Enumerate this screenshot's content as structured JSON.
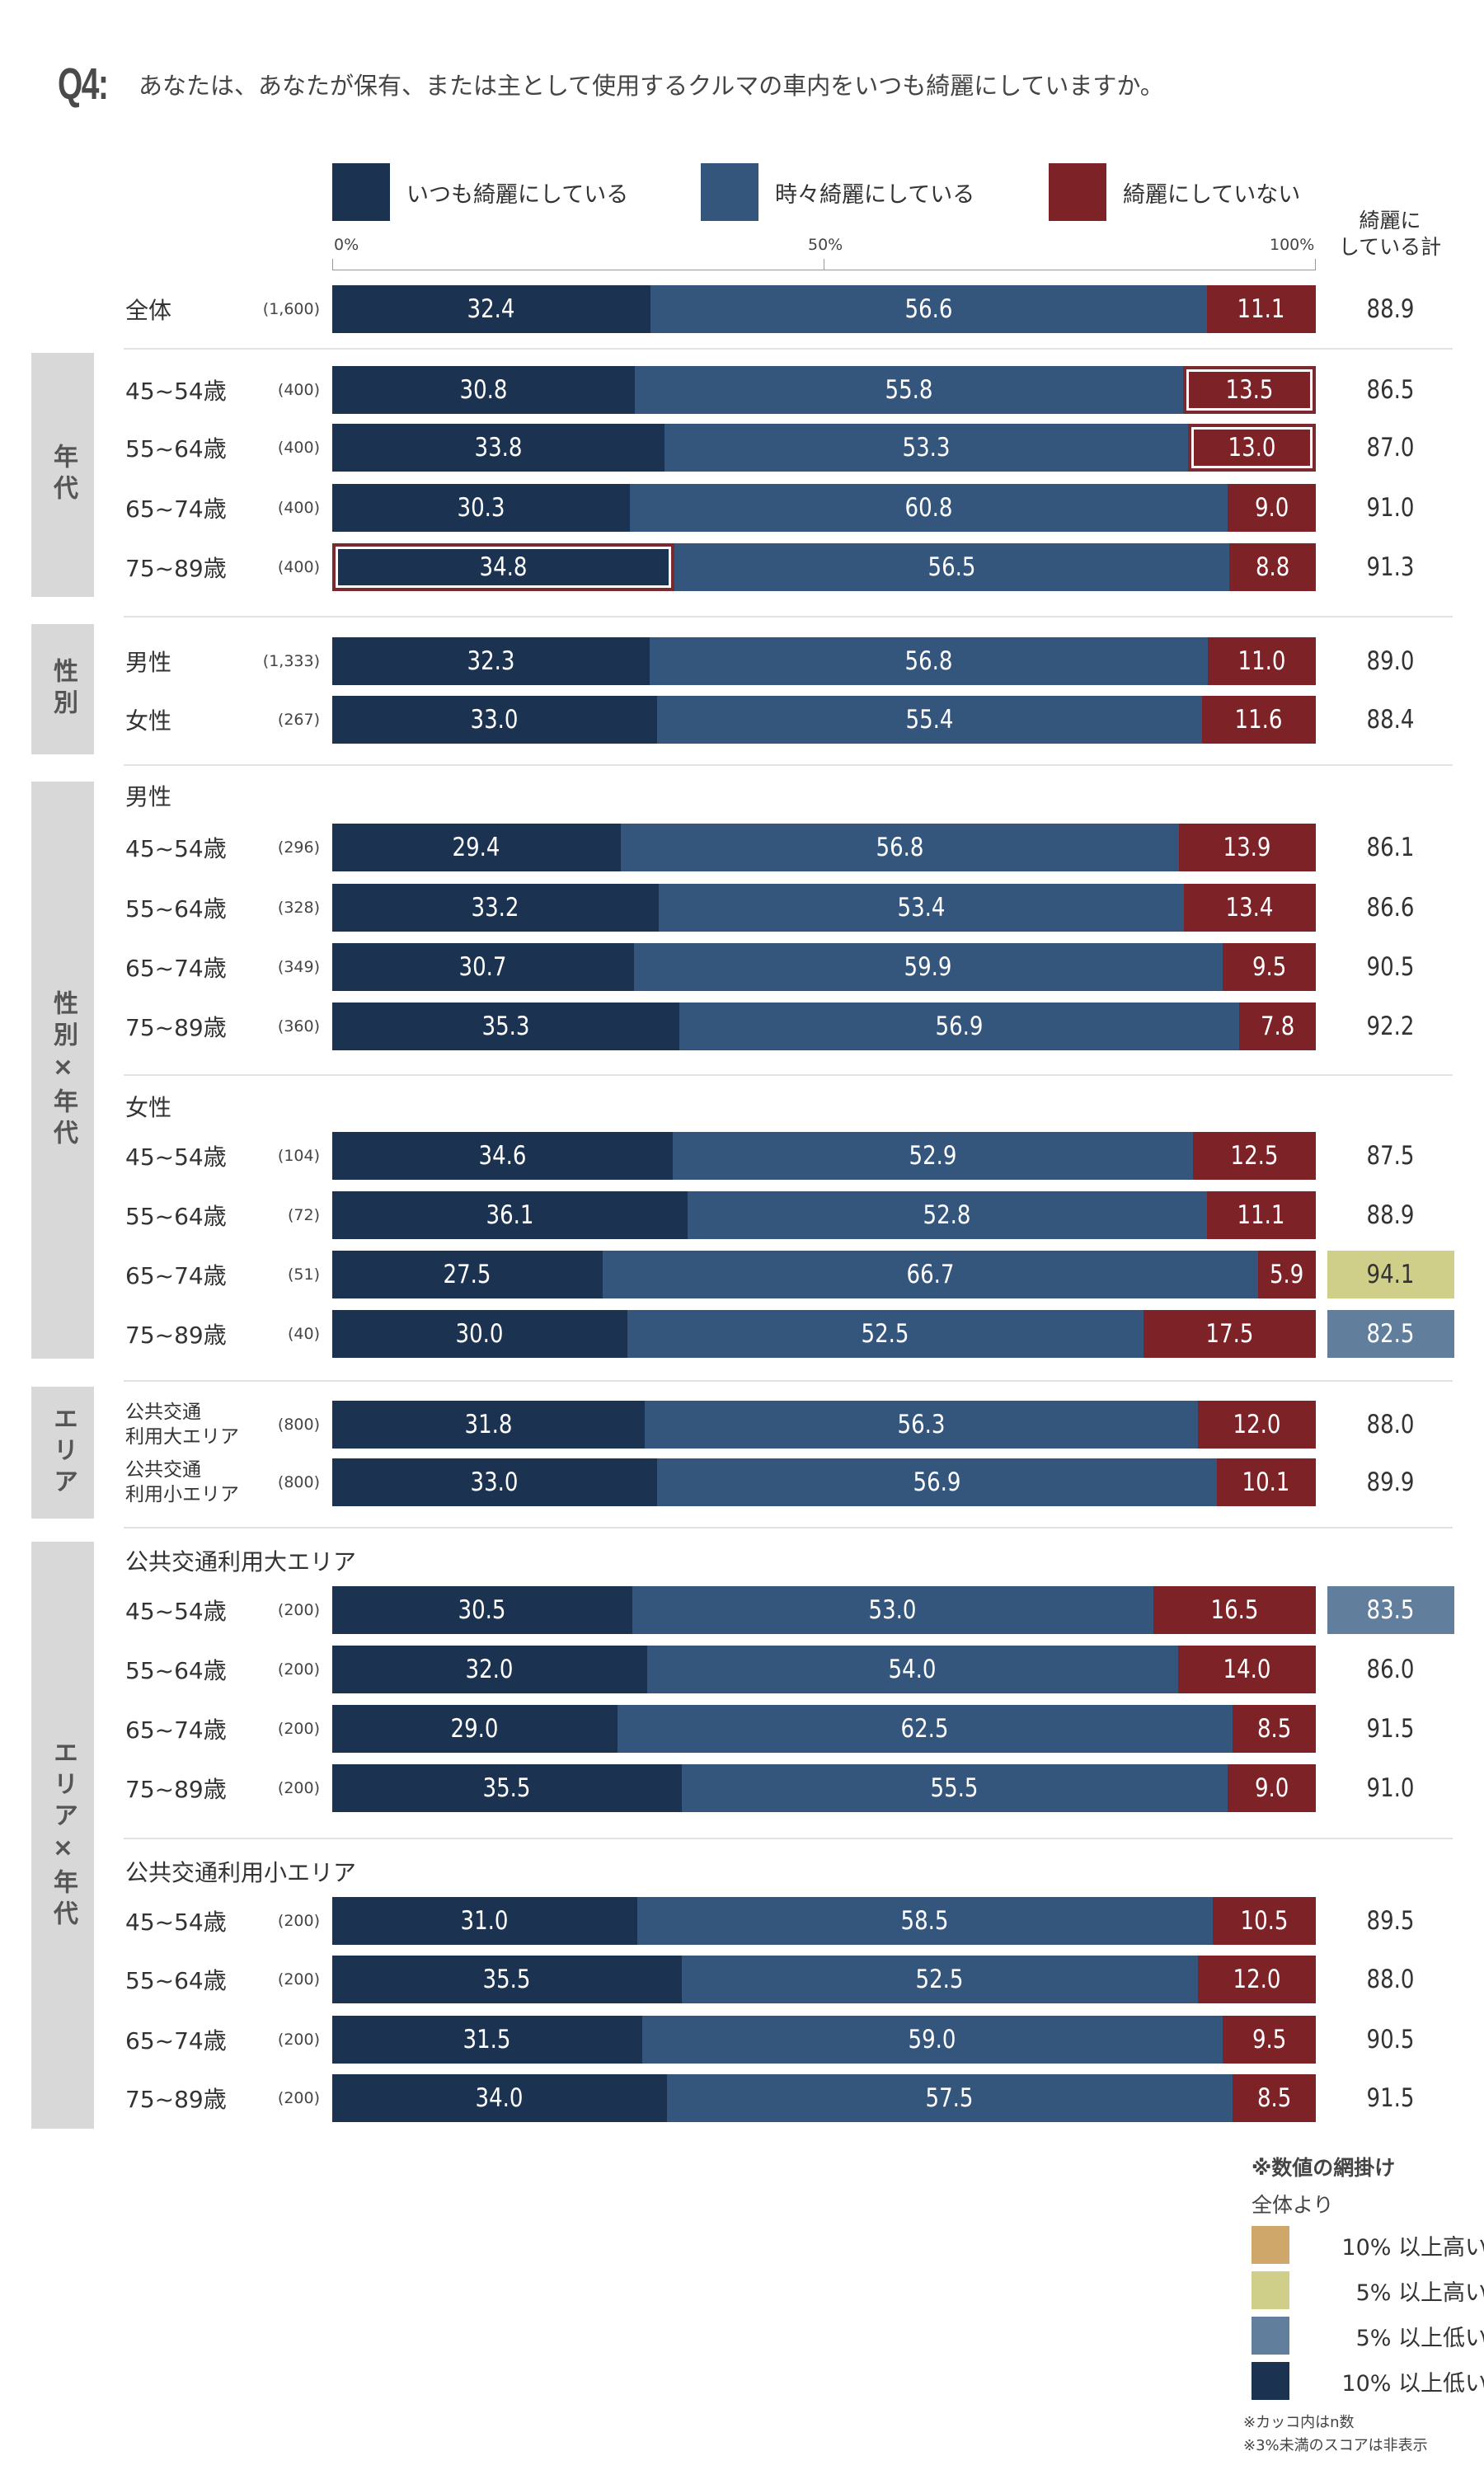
{
  "question": {
    "number": "Q4:",
    "text": "あなたは、あなたが保有、または主として使用するクルマの車内をいつも綺麗にしていますか。"
  },
  "colors": {
    "always": "#1b3350",
    "sometimes": "#34567c",
    "not": "#7d2227",
    "highlight_border": "#7a2a2e",
    "group_bg": "#d8d8d8",
    "more_high10": "#cfa76a",
    "more_high5": "#cfcf8a",
    "more_low5": "#617e9c",
    "more_low10": "#1b3350"
  },
  "legend": {
    "always": "いつも綺麗にしている",
    "sometimes": "時々綺麗にしている",
    "not": "綺麗にしていない",
    "total_line1": "綺麗に",
    "total_line2": "している計"
  },
  "axis": {
    "t0": "0%",
    "t50": "50%",
    "t100": "100%"
  },
  "groups": {
    "age": "年代",
    "gender": "性別",
    "gender_age": "性別×年代",
    "area": "エリア",
    "area_age": "エリア×年代"
  },
  "subheads": {
    "male": "男性",
    "female": "女性",
    "area_large": "公共交通利用大エリア",
    "area_small": "公共交通利用小エリア"
  },
  "chart_data": {
    "type": "bar",
    "stacked": true,
    "orientation": "horizontal",
    "xlim": [
      0,
      100
    ],
    "series_names": [
      "いつも綺麗にしている",
      "時々綺麗にしている",
      "綺麗にしていない"
    ],
    "total_label": "綺麗にしている計",
    "rows": [
      {
        "label": "全体",
        "n": "(1,600)",
        "values": [
          "32.4",
          "56.6",
          "11.1"
        ],
        "total": "88.9"
      },
      {
        "label": "45~54歳",
        "n": "(400)",
        "values": [
          "30.8",
          "55.8",
          "13.5"
        ],
        "total": "86.5"
      },
      {
        "label": "55~64歳",
        "n": "(400)",
        "values": [
          "33.8",
          "53.3",
          "13.0"
        ],
        "total": "87.0"
      },
      {
        "label": "65~74歳",
        "n": "(400)",
        "values": [
          "30.3",
          "60.8",
          "9.0"
        ],
        "total": "91.0"
      },
      {
        "label": "75~89歳",
        "n": "(400)",
        "values": [
          "34.8",
          "56.5",
          "8.8"
        ],
        "total": "91.3"
      },
      {
        "label": "男性",
        "n": "(1,333)",
        "values": [
          "32.3",
          "56.8",
          "11.0"
        ],
        "total": "89.0"
      },
      {
        "label": "女性",
        "n": "(267)",
        "values": [
          "33.0",
          "55.4",
          "11.6"
        ],
        "total": "88.4"
      },
      {
        "label": "45~54歳",
        "n": "(296)",
        "values": [
          "29.4",
          "56.8",
          "13.9"
        ],
        "total": "86.1"
      },
      {
        "label": "55~64歳",
        "n": "(328)",
        "values": [
          "33.2",
          "53.4",
          "13.4"
        ],
        "total": "86.6"
      },
      {
        "label": "65~74歳",
        "n": "(349)",
        "values": [
          "30.7",
          "59.9",
          "9.5"
        ],
        "total": "90.5"
      },
      {
        "label": "75~89歳",
        "n": "(360)",
        "values": [
          "35.3",
          "56.9",
          "7.8"
        ],
        "total": "92.2"
      },
      {
        "label": "45~54歳",
        "n": "(104)",
        "values": [
          "34.6",
          "52.9",
          "12.5"
        ],
        "total": "87.5"
      },
      {
        "label": "55~64歳",
        "n": "(72)",
        "values": [
          "36.1",
          "52.8",
          "11.1"
        ],
        "total": "88.9"
      },
      {
        "label": "65~74歳",
        "n": "(51)",
        "values": [
          "27.5",
          "66.7",
          "5.9"
        ],
        "total": "94.1"
      },
      {
        "label": "75~89歳",
        "n": "(40)",
        "values": [
          "30.0",
          "52.5",
          "17.5"
        ],
        "total": "82.5"
      },
      {
        "label": "公共交通 利用大エリア",
        "line1": "公共交通",
        "line2": "利用大エリア",
        "n": "(800)",
        "values": [
          "31.8",
          "56.3",
          "12.0"
        ],
        "total": "88.0"
      },
      {
        "label": "公共交通 利用小エリア",
        "line1": "公共交通",
        "line2": "利用小エリア",
        "n": "(800)",
        "values": [
          "33.0",
          "56.9",
          "10.1"
        ],
        "total": "89.9"
      },
      {
        "label": "45~54歳",
        "n": "(200)",
        "values": [
          "30.5",
          "53.0",
          "16.5"
        ],
        "total": "83.5"
      },
      {
        "label": "55~64歳",
        "n": "(200)",
        "values": [
          "32.0",
          "54.0",
          "14.0"
        ],
        "total": "86.0"
      },
      {
        "label": "65~74歳",
        "n": "(200)",
        "values": [
          "29.0",
          "62.5",
          "8.5"
        ],
        "total": "91.5"
      },
      {
        "label": "75~89歳",
        "n": "(200)",
        "values": [
          "35.5",
          "55.5",
          "9.0"
        ],
        "total": "91.0"
      },
      {
        "label": "45~54歳",
        "n": "(200)",
        "values": [
          "31.0",
          "58.5",
          "10.5"
        ],
        "total": "89.5"
      },
      {
        "label": "55~64歳",
        "n": "(200)",
        "values": [
          "35.5",
          "52.5",
          "12.0"
        ],
        "total": "88.0"
      },
      {
        "label": "65~74歳",
        "n": "(200)",
        "values": [
          "31.5",
          "59.0",
          "9.5"
        ],
        "total": "90.5"
      },
      {
        "label": "75~89歳",
        "n": "(200)",
        "values": [
          "34.0",
          "57.5",
          "8.5"
        ],
        "total": "91.5"
      }
    ],
    "highlighted_cells": [
      {
        "row": 1,
        "series": 2
      },
      {
        "row": 2,
        "series": 2
      },
      {
        "row": 4,
        "series": 0
      }
    ],
    "total_shading": [
      {
        "row": 13,
        "level": "5%以上高い"
      },
      {
        "row": 14,
        "level": "5%以上低い"
      },
      {
        "row": 17,
        "level": "5%以上低い"
      }
    ]
  },
  "notes": {
    "title": "※数値の網掛け",
    "subtitle": "全体より",
    "key_high10": "10% 以上高い",
    "key_high5": "5% 以上高い",
    "key_low5": "5% 以上低い",
    "key_low10": "10% 以上低い",
    "foot1": "※カッコ内はn数",
    "foot2": "※3%未満のスコアは非表示"
  }
}
